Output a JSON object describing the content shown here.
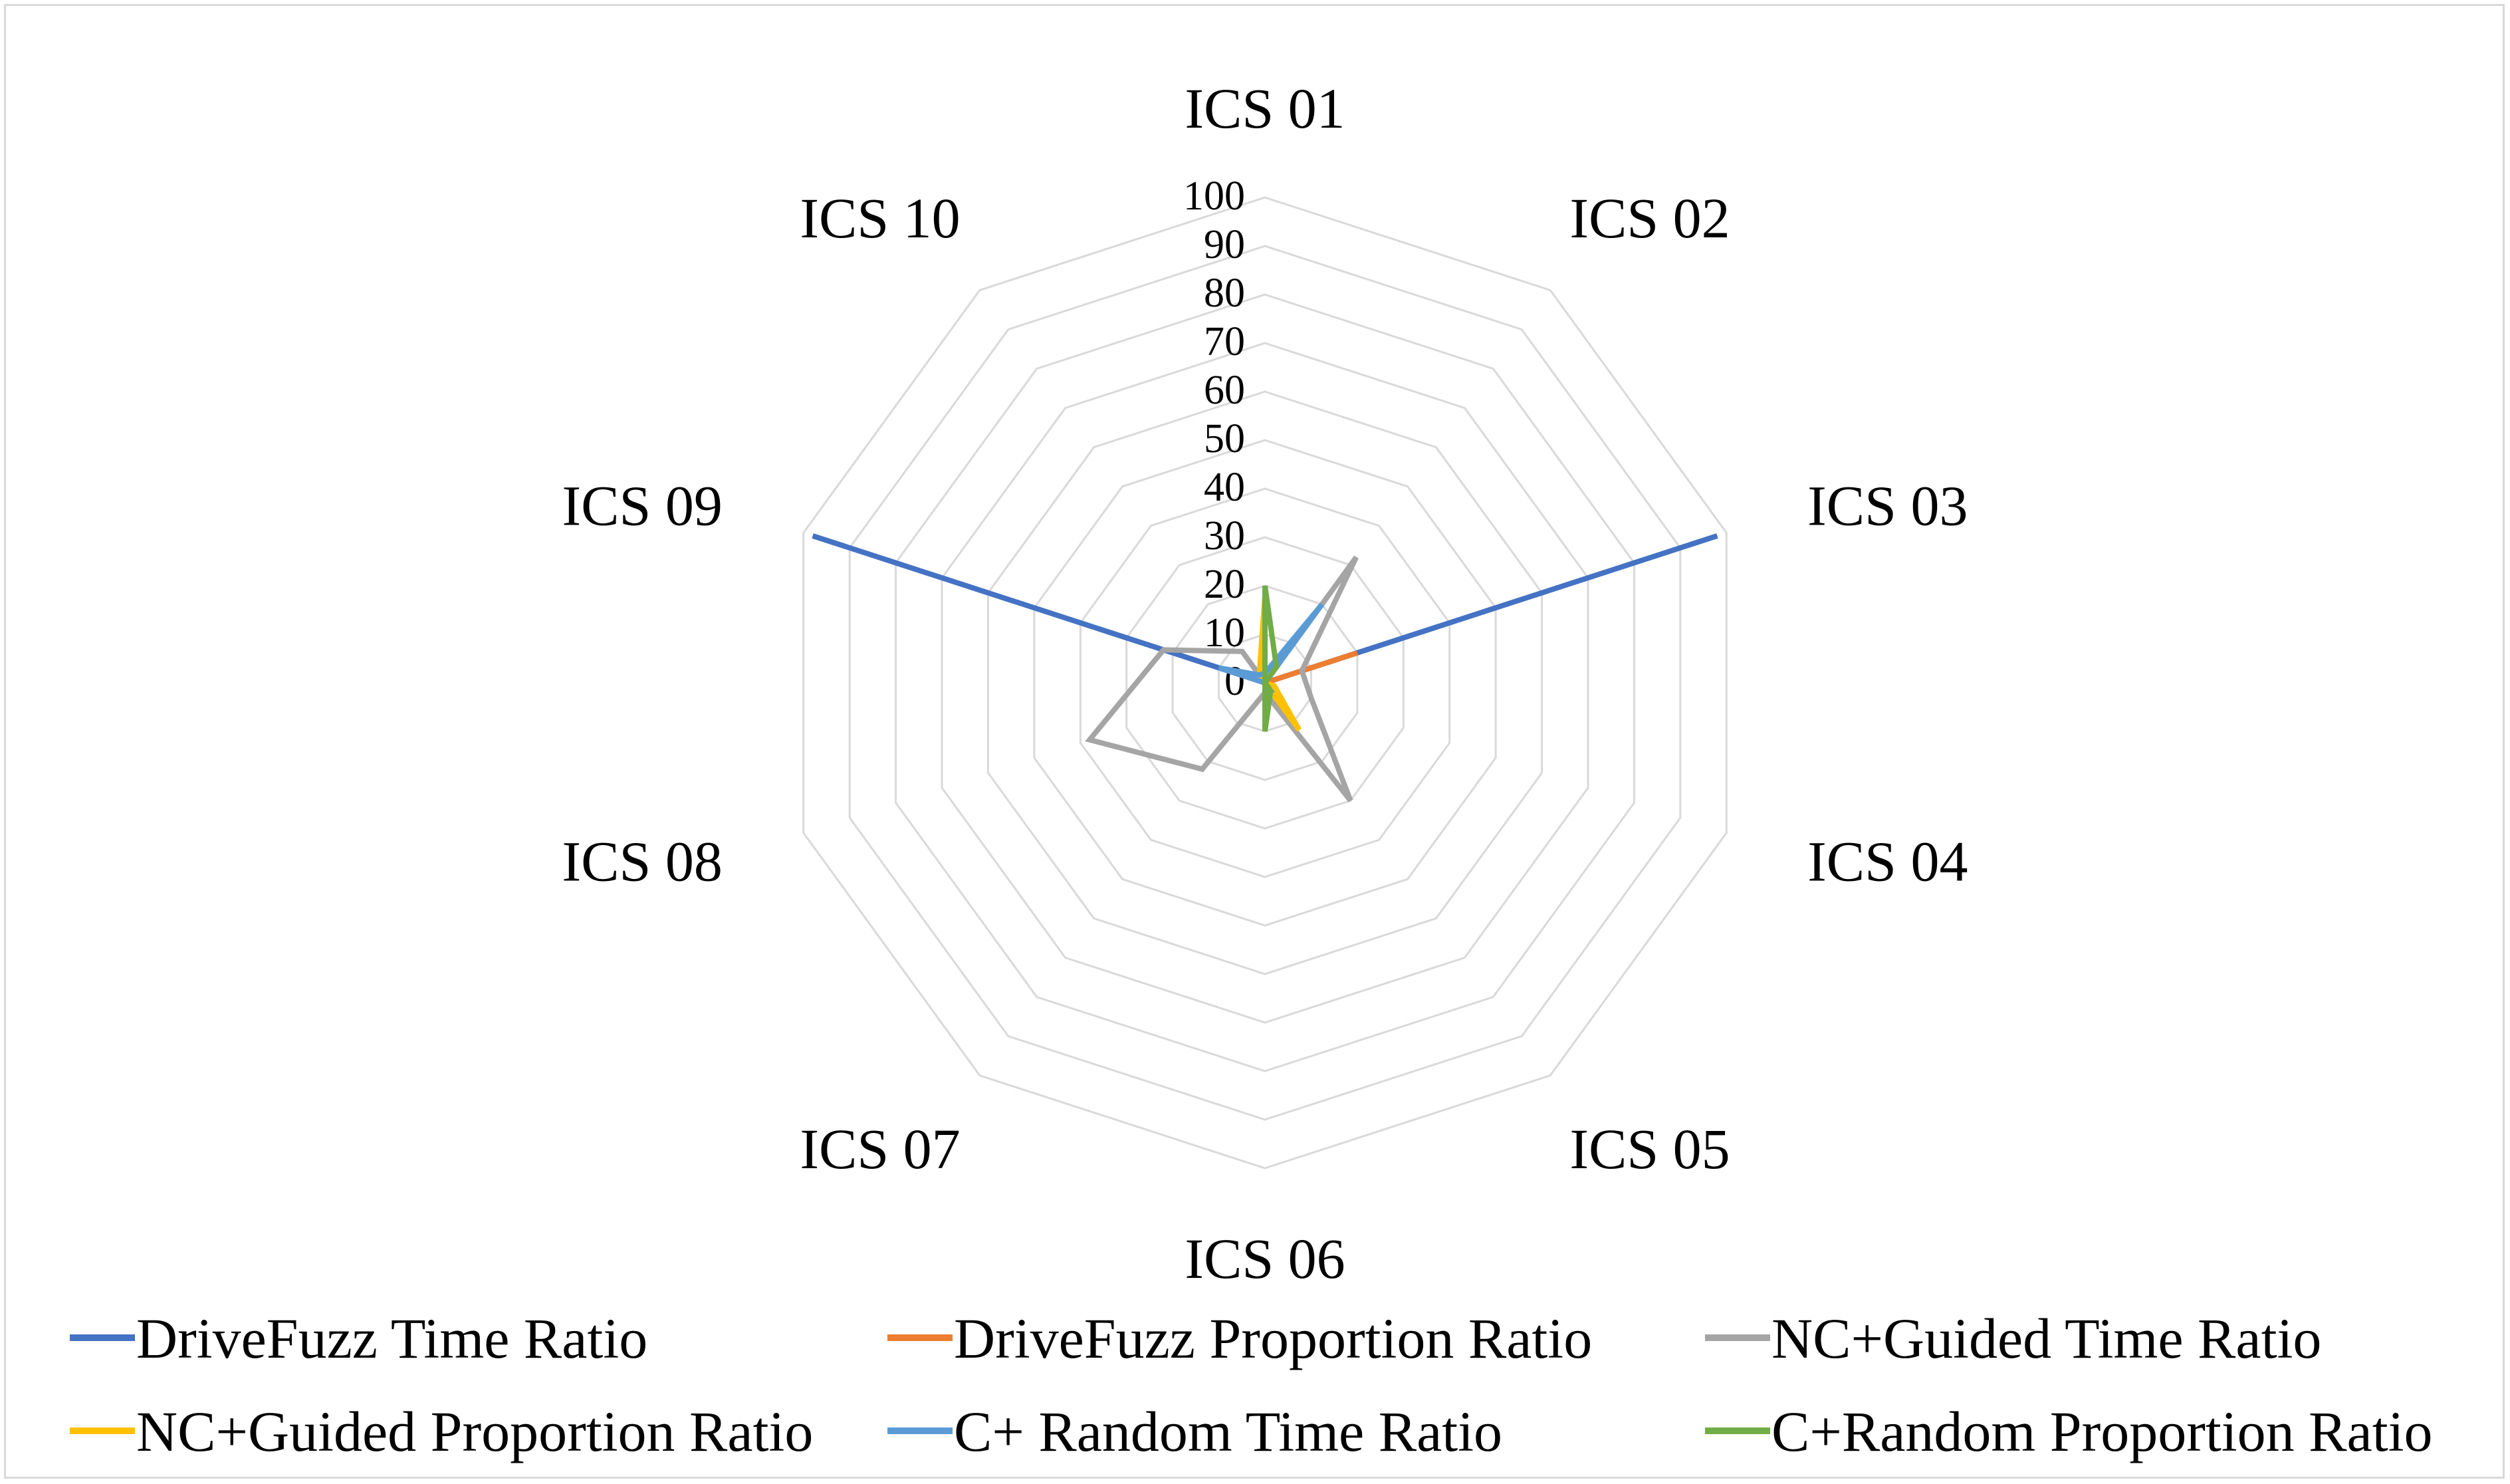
{
  "chart_data": {
    "type": "radar",
    "categories": [
      "ICS 01",
      "ICS 02",
      "ICS 03",
      "ICS 04",
      "ICS 05",
      "ICS 06",
      "ICS 07",
      "ICS 08",
      "ICS 09",
      "ICS 10"
    ],
    "rlim": [
      0,
      100
    ],
    "ticks": [
      "0",
      "10",
      "20",
      "30",
      "40",
      "50",
      "60",
      "70",
      "80",
      "90",
      "100"
    ],
    "grid": true,
    "legend_position": "bottom",
    "series": [
      {
        "name": "DriveFuzz Time Ratio",
        "color": "#4472c4",
        "values": [
          0,
          0,
          98,
          0,
          0,
          0,
          0,
          0,
          98,
          0
        ]
      },
      {
        "name": "DriveFuzz Proportion Ratio",
        "color": "#ed7d31",
        "values": [
          0,
          0,
          20,
          0,
          0,
          0,
          0,
          0,
          0,
          0
        ]
      },
      {
        "name": "NC+Guided Time Ratio",
        "color": "#a5a5a5",
        "values": [
          0,
          32,
          8,
          10,
          30,
          2,
          22,
          38,
          22,
          8
        ]
      },
      {
        "name": "NC+Guided Proportion Ratio",
        "color": "#ffc000",
        "values": [
          18,
          0,
          0,
          2,
          12,
          0,
          0,
          0,
          0,
          2
        ]
      },
      {
        "name": "C+ Random Time Ratio",
        "color": "#5b9bd5",
        "values": [
          2,
          20,
          0,
          0,
          2,
          2,
          0,
          0,
          10,
          2
        ]
      },
      {
        "name": "C+Random Proportion Ratio",
        "color": "#70ad47",
        "values": [
          20,
          4,
          0,
          0,
          2,
          10,
          0,
          0,
          0,
          0
        ]
      }
    ]
  }
}
